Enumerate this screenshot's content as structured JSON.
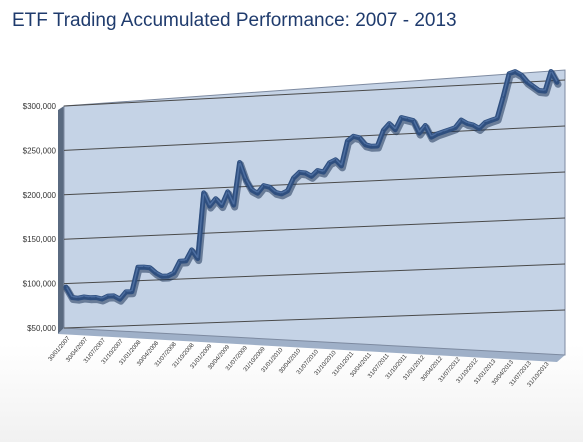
{
  "chart_data": {
    "type": "line",
    "title": "ETF Trading Accumulated Performance: 2007 - 2013",
    "xlabel": "",
    "ylabel": "",
    "ylim": [
      50000,
      300000
    ],
    "yticks": [
      "$50,000",
      "$100,000",
      "$150,000",
      "$200,000",
      "$250,000",
      "$300,000"
    ],
    "ytick_values": [
      50000,
      100000,
      150000,
      200000,
      250000,
      300000
    ],
    "grid": true,
    "legend": "none",
    "x_tick_labels": [
      "30/01/2007",
      "30/04/2007",
      "31/07/2007",
      "31/10/2007",
      "31/01/2008",
      "30/04/2008",
      "31/07/2008",
      "31/10/2008",
      "31/01/2009",
      "30/04/2009",
      "31/07/2009",
      "31/10/2009",
      "31/01/2010",
      "30/04/2010",
      "31/07/2010",
      "31/10/2010",
      "31/01/2011",
      "30/04/2011",
      "31/07/2011",
      "31/10/2011",
      "31/01/2012",
      "30/04/2012",
      "31/07/2012",
      "31/10/2012",
      "31/01/2013",
      "30/04/2013",
      "31/07/2013",
      "31/10/2013"
    ],
    "series": [
      {
        "values": [
          96000,
          84000,
          83000,
          84000,
          83000,
          83000,
          81000,
          84000,
          84000,
          80000,
          88000,
          88000,
          115000,
          115000,
          114000,
          108000,
          104000,
          104000,
          107000,
          120000,
          120000,
          132000,
          122000,
          195000,
          180000,
          188000,
          180000,
          195000,
          180000,
          227000,
          208000,
          196000,
          192000,
          200000,
          198000,
          192000,
          190000,
          193000,
          207000,
          213000,
          212000,
          208000,
          214000,
          212000,
          222000,
          225000,
          218000,
          245000,
          250000,
          248000,
          240000,
          238000,
          238000,
          255000,
          262000,
          255000,
          268000,
          266000,
          264000,
          250000,
          258000,
          245000,
          248000,
          250000,
          252000,
          254000,
          262000,
          258000,
          256000,
          252000,
          258000,
          260000,
          262000,
          285000,
          310000,
          312000,
          308000,
          300000,
          295000,
          290000,
          289000,
          310000,
          298000
        ]
      }
    ],
    "colors": {
      "line": "#2f4f7f",
      "line_highlight": "#4d6ea0",
      "plot_background": "#c5d3e6",
      "grid": "#4a4a4a",
      "title": "#1f3b6d"
    }
  }
}
